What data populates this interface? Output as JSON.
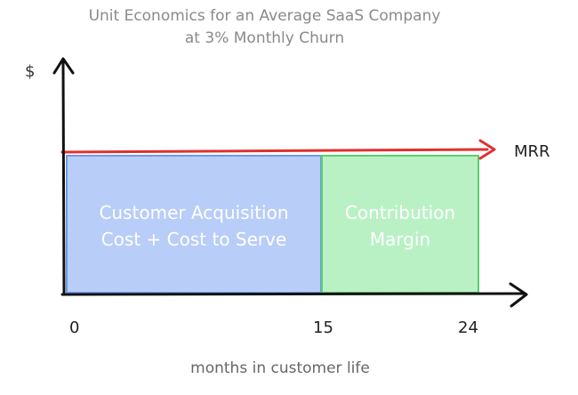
{
  "title_line1": "Unit Economics for an Average SaaS Company",
  "title_line2": "at 3% Monthly Churn",
  "y_axis_label": "$",
  "x_axis_label": "months in customer life",
  "mrr_label": "MRR",
  "ticks": [
    "0",
    "15",
    "24"
  ],
  "regions": [
    {
      "line1": "Customer Acquisition",
      "line2": "Cost + Cost to Serve",
      "fill": "#b8cdf7",
      "stroke": "#6e9ae8"
    },
    {
      "line1": "Contribution",
      "line2": "Margin",
      "fill": "#b9f1c4",
      "stroke": "#5ad06f"
    }
  ],
  "colors": {
    "axis": "#111111",
    "mrr_line": "#e03030"
  }
}
